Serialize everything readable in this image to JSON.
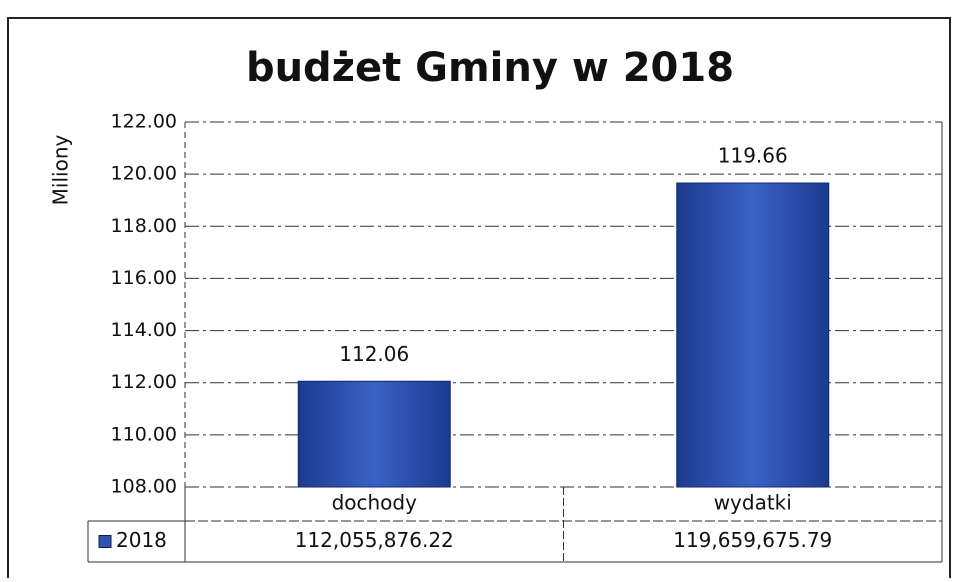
{
  "chart_data": {
    "type": "bar",
    "title": "budżet Gminy w 2018",
    "y_label": "Miliony",
    "categories": [
      "dochody",
      "wydatki"
    ],
    "series": [
      {
        "name": "2018",
        "color": "#2f54b4",
        "values": [
          112.05587622,
          119.65967579
        ],
        "value_labels": [
          "112.06",
          "119.66"
        ]
      }
    ],
    "ylim": [
      108,
      122
    ],
    "yticks": [
      {
        "value": 108,
        "label": "108.00"
      },
      {
        "value": 110,
        "label": "110.00"
      },
      {
        "value": 112,
        "label": "112.00"
      },
      {
        "value": 114,
        "label": "114.00"
      },
      {
        "value": 116,
        "label": "116.00"
      },
      {
        "value": 118,
        "label": "118.00"
      },
      {
        "value": 120,
        "label": "120.00"
      },
      {
        "value": 122,
        "label": "122.00"
      }
    ],
    "grid": true,
    "data_table": [
      "112,055,876.22",
      "119,659,675.79"
    ]
  }
}
